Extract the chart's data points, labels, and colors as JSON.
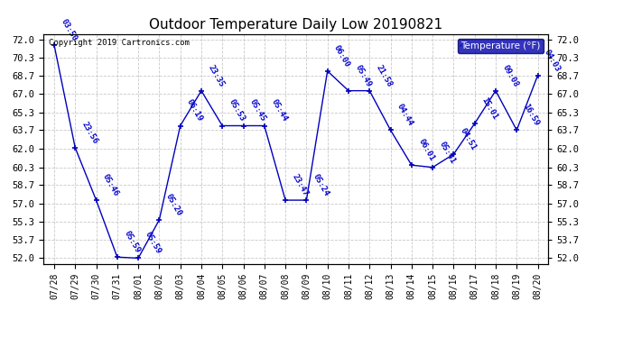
{
  "title": "Outdoor Temperature Daily Low 20190821",
  "copyright": "Copyright 2019 Cartronics.com",
  "legend_label": "Temperature (°F)",
  "x_labels": [
    "07/28",
    "07/29",
    "07/30",
    "07/31",
    "08/01",
    "08/02",
    "08/03",
    "08/04",
    "08/05",
    "08/06",
    "08/07",
    "08/08",
    "08/09",
    "08/10",
    "08/11",
    "08/12",
    "08/13",
    "08/14",
    "08/15",
    "08/16",
    "08/17",
    "08/18",
    "08/19",
    "08/20"
  ],
  "y_values": [
    71.5,
    62.1,
    57.3,
    52.1,
    52.0,
    55.5,
    64.1,
    67.3,
    64.1,
    64.1,
    64.1,
    57.3,
    57.3,
    69.1,
    67.3,
    67.3,
    63.7,
    60.5,
    60.3,
    61.5,
    64.3,
    67.3,
    63.7,
    68.7
  ],
  "point_labels": [
    "03:50",
    "23:56",
    "05:46",
    "05:59",
    "05:59",
    "05:20",
    "06:19",
    "23:35",
    "05:53",
    "05:45",
    "05:44",
    "23:47",
    "05:24",
    "06:00",
    "05:49",
    "21:58",
    "04:44",
    "06:01",
    "05:41",
    "04:51",
    "15:01",
    "09:08",
    "16:59",
    "04:03"
  ],
  "line_color": "#0000bb",
  "marker_color": "#0000bb",
  "background_color": "#ffffff",
  "grid_color": "#bbbbbb",
  "title_color": "#000000",
  "y_tick_labels": [
    "72.0",
    "70.3",
    "68.7",
    "67.0",
    "65.3",
    "63.7",
    "62.0",
    "60.3",
    "58.7",
    "57.0",
    "55.3",
    "53.7",
    "52.0"
  ],
  "y_tick_values": [
    72.0,
    70.3,
    68.7,
    67.0,
    65.3,
    63.7,
    62.0,
    60.3,
    58.7,
    57.0,
    55.3,
    53.7,
    52.0
  ],
  "ylim": [
    51.5,
    72.5
  ],
  "legend_bg": "#0000aa",
  "legend_text_color": "#ffffff",
  "label_color": "#0000cc",
  "label_fontsize": 6.5,
  "title_fontsize": 11
}
